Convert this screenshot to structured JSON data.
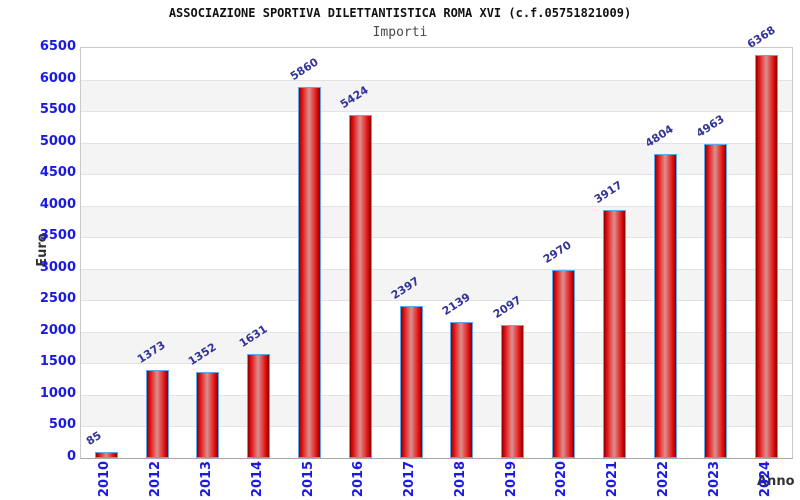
{
  "header": {
    "title": "ASSOCIAZIONE SPORTIVA DILETTANTISTICA ROMA XVI (c.f.05751821009)",
    "subtitle": "Importi"
  },
  "chart_data": {
    "type": "bar",
    "title": "ASSOCIAZIONE SPORTIVA DILETTANTISTICA ROMA XVI (c.f.05751821009)",
    "subtitle": "Importi",
    "categories": [
      "2010",
      "2012",
      "2013",
      "2014",
      "2015",
      "2016",
      "2017",
      "2018",
      "2019",
      "2020",
      "2021",
      "2022",
      "2023",
      "2024"
    ],
    "values": [
      85,
      1373,
      1352,
      1631,
      5860,
      5424,
      2397,
      2139,
      2097,
      2970,
      3917,
      4804,
      4963,
      6368
    ],
    "xlabel": "Anno",
    "ylabel": "Euro",
    "ylim": [
      0,
      6500
    ],
    "yticks": [
      0,
      500,
      1000,
      1500,
      2000,
      2500,
      3000,
      3500,
      4000,
      4500,
      5000,
      5500,
      6000,
      6500
    ],
    "grid": "horizontal gridlines every 500 with alternating white/gray bands",
    "legend": "none",
    "bar_value_labels_rotated_deg": -33,
    "x_labels_rotated_deg": -90
  },
  "colors": {
    "title": "#111111",
    "subtitle": "#4a4a4a",
    "axis_tick_label": "#1a1ae0",
    "bar_value_label": "#333399",
    "axis_title": "#333333",
    "bar_fill": "#e41414",
    "bar_border": "#5ea7e8",
    "band_gray": "#f4f4f4",
    "gridline": "#e3e3e3",
    "plot_border": "#c9c9c9"
  }
}
